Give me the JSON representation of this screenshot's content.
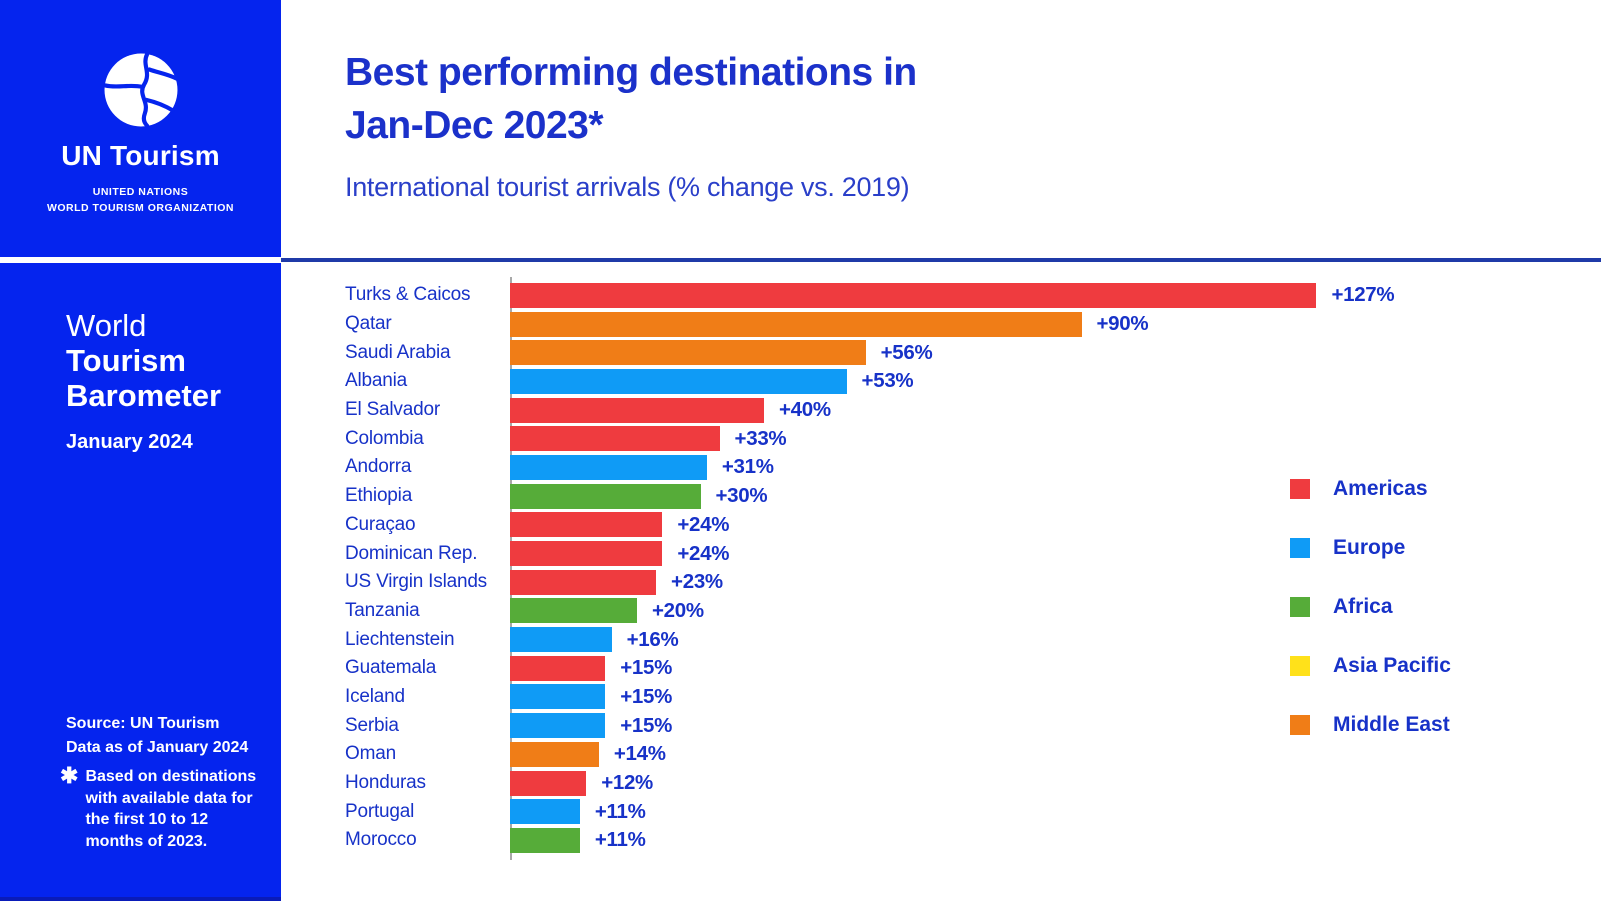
{
  "branding": {
    "logo_title": "UN Tourism",
    "logo_subtitle_line1": "UNITED NATIONS",
    "logo_subtitle_line2": "WORLD TOURISM ORGANIZATION"
  },
  "sidebar": {
    "report_title_line1": "World",
    "report_title_line2": "Tourism",
    "report_title_line3": "Barometer",
    "report_date": "January 2024",
    "source_line1": "Source: UN Tourism",
    "source_line2": "Data as of January 2024",
    "footnote_marker": "✱",
    "footnote": "Based on destinations with available data for the first 10 to 12 months of 2023."
  },
  "header": {
    "title_line1": "Best performing destinations in",
    "title_line2": "Jan-Dec 2023*",
    "subtitle": "International tourist arrivals (% change vs. 2019)"
  },
  "chart_data": {
    "type": "bar",
    "orientation": "horizontal",
    "title": "Best performing destinations in Jan-Dec 2023*",
    "subtitle": "International tourist arrivals (% change vs. 2019)",
    "unit": "% change vs. 2019",
    "xlim": [
      0,
      130
    ],
    "grid": false,
    "legend_position": "right",
    "categories": [
      "Turks & Caicos",
      "Qatar",
      "Saudi Arabia",
      "Albania",
      "El Salvador",
      "Colombia",
      "Andorra",
      "Ethiopia",
      "Curaçao",
      "Dominican Rep.",
      "US Virgin Islands",
      "Tanzania",
      "Liechtenstein",
      "Guatemala",
      "Iceland",
      "Serbia",
      "Oman",
      "Honduras",
      "Portugal",
      "Morocco"
    ],
    "values": [
      127,
      90,
      56,
      53,
      40,
      33,
      31,
      30,
      24,
      24,
      23,
      20,
      16,
      15,
      15,
      15,
      14,
      12,
      11,
      11
    ],
    "value_labels": [
      "+127%",
      "+90%",
      "+56%",
      "+53%",
      "+40%",
      "+33%",
      "+31%",
      "+30%",
      "+24%",
      "+24%",
      "+23%",
      "+20%",
      "+16%",
      "+15%",
      "+15%",
      "+15%",
      "+14%",
      "+12%",
      "+11%",
      "+11%"
    ],
    "regions": [
      "Americas",
      "Middle East",
      "Middle East",
      "Europe",
      "Americas",
      "Americas",
      "Europe",
      "Africa",
      "Americas",
      "Americas",
      "Americas",
      "Africa",
      "Europe",
      "Americas",
      "Europe",
      "Europe",
      "Middle East",
      "Americas",
      "Europe",
      "Africa"
    ],
    "region_colors": {
      "Americas": "#EF3B3F",
      "Europe": "#0F9BF6",
      "Africa": "#56AC39",
      "Asia Pacific": "#FFE11A",
      "Middle East": "#F07D17"
    }
  },
  "legend": {
    "items": [
      {
        "label": "Americas",
        "color": "#EF3B3F"
      },
      {
        "label": "Europe",
        "color": "#0F9BF6"
      },
      {
        "label": "Africa",
        "color": "#56AC39"
      },
      {
        "label": "Asia Pacific",
        "color": "#FFE11A"
      },
      {
        "label": "Middle East",
        "color": "#F07D17"
      }
    ]
  },
  "colors": {
    "sidebar_background": "#0524EE",
    "title_text": "#1B31CA",
    "label_text": "#1732C8",
    "header_divider": "#1F3AA8",
    "axis_line": "#A8A8A8"
  }
}
